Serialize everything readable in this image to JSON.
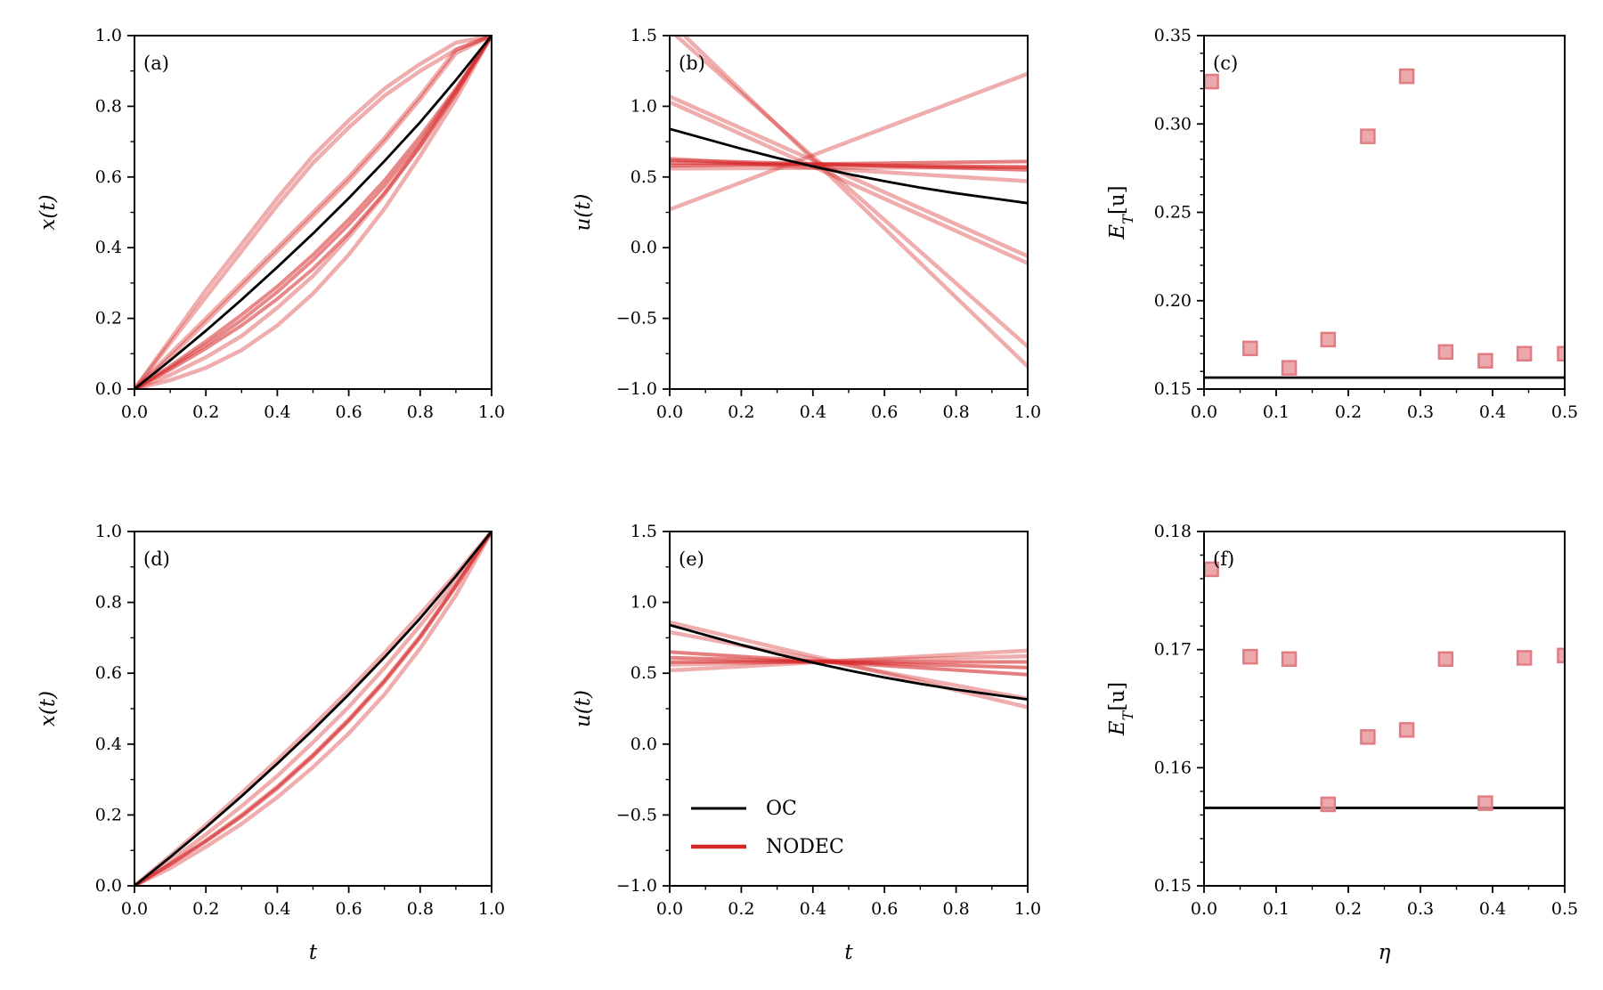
{
  "figure": {
    "colors": {
      "oc": "#000000",
      "nodec": "#d62728",
      "nodec_faint": "#e8868b",
      "marker_fill": "#e89aa0",
      "marker_edge": "#e37b82"
    },
    "legend": {
      "oc_label": "OC",
      "nodec_label": "NODEC",
      "panel": "e",
      "placement": "lower-left"
    }
  },
  "chart_data": [
    {
      "id": "a",
      "type": "line",
      "panel_label": "(a)",
      "xlabel": "",
      "ylabel": "x(t)",
      "xlim": [
        0,
        1
      ],
      "ylim": [
        0,
        1
      ],
      "xticks": [
        0,
        0.2,
        0.4,
        0.6,
        0.8,
        1.0
      ],
      "xtick_labels": [
        "0.0",
        "0.2",
        "0.4",
        "0.6",
        "0.8",
        "1.0"
      ],
      "yticks": [
        0,
        0.2,
        0.4,
        0.6,
        0.8,
        1.0
      ],
      "ytick_labels": [
        "0.0",
        "0.2",
        "0.4",
        "0.6",
        "0.8",
        "1.0"
      ],
      "x": [
        0,
        0.1,
        0.2,
        0.3,
        0.4,
        0.5,
        0.6,
        0.7,
        0.8,
        0.9,
        1.0
      ],
      "oc": [
        0,
        0.081,
        0.165,
        0.253,
        0.345,
        0.44,
        0.54,
        0.645,
        0.755,
        0.874,
        1.0
      ],
      "nodec_faint": [
        [
          0,
          0.14,
          0.28,
          0.41,
          0.54,
          0.66,
          0.76,
          0.85,
          0.92,
          0.98,
          1.0
        ],
        [
          0,
          0.13,
          0.26,
          0.39,
          0.52,
          0.64,
          0.74,
          0.83,
          0.9,
          0.96,
          1.0
        ],
        [
          0,
          0.1,
          0.2,
          0.3,
          0.4,
          0.5,
          0.6,
          0.71,
          0.83,
          0.96,
          1.0
        ],
        [
          0,
          0.09,
          0.19,
          0.29,
          0.39,
          0.49,
          0.59,
          0.7,
          0.82,
          0.95,
          1.0
        ],
        [
          0,
          0.025,
          0.06,
          0.11,
          0.18,
          0.27,
          0.38,
          0.51,
          0.66,
          0.82,
          1.0
        ],
        [
          0,
          0.04,
          0.09,
          0.15,
          0.23,
          0.32,
          0.43,
          0.55,
          0.69,
          0.84,
          1.0
        ]
      ],
      "nodec_strong": [
        [
          0,
          0.06,
          0.125,
          0.195,
          0.275,
          0.365,
          0.465,
          0.575,
          0.7,
          0.845,
          1.0
        ],
        [
          0,
          0.065,
          0.135,
          0.21,
          0.29,
          0.38,
          0.48,
          0.59,
          0.715,
          0.85,
          1.0
        ],
        [
          0,
          0.055,
          0.115,
          0.18,
          0.255,
          0.34,
          0.44,
          0.555,
          0.685,
          0.835,
          1.0
        ]
      ]
    },
    {
      "id": "b",
      "type": "line",
      "panel_label": "(b)",
      "xlabel": "",
      "ylabel": "u(t)",
      "xlim": [
        0,
        1
      ],
      "ylim": [
        -1,
        1.5
      ],
      "xticks": [
        0,
        0.2,
        0.4,
        0.6,
        0.8,
        1.0
      ],
      "xtick_labels": [
        "0.0",
        "0.2",
        "0.4",
        "0.6",
        "0.8",
        "1.0"
      ],
      "yticks": [
        -1,
        -0.5,
        0,
        0.5,
        1.0,
        1.5
      ],
      "ytick_labels": [
        "−1.0",
        "−0.5",
        "0.0",
        "0.5",
        "1.0",
        "1.5"
      ],
      "x": [
        0,
        0.1,
        0.2,
        0.3,
        0.4,
        0.5,
        0.6,
        0.7,
        0.8,
        0.9,
        1.0
      ],
      "oc": [
        0.84,
        0.77,
        0.7,
        0.635,
        0.575,
        0.52,
        0.47,
        0.425,
        0.385,
        0.35,
        0.315
      ],
      "nodec_faint_lines": [
        [
          0,
          1.07,
          1,
          -0.06
        ],
        [
          0,
          1.03,
          1,
          -0.11
        ],
        [
          0,
          1.54,
          1,
          -0.7
        ],
        [
          0,
          1.6,
          1,
          -0.84
        ],
        [
          0,
          0.27,
          1,
          1.23
        ],
        [
          0,
          0.56,
          1,
          0.57
        ],
        [
          0,
          0.63,
          1,
          0.47
        ]
      ],
      "nodec_strong_lines": [
        [
          0,
          0.6,
          1,
          0.57
        ],
        [
          0,
          0.58,
          1,
          0.61
        ],
        [
          0,
          0.62,
          1,
          0.55
        ]
      ]
    },
    {
      "id": "c",
      "type": "scatter",
      "panel_label": "(c)",
      "xlabel": "",
      "ylabel": "E_T[u]",
      "xlim": [
        0,
        0.5
      ],
      "ylim": [
        0.15,
        0.35
      ],
      "xticks": [
        0,
        0.1,
        0.2,
        0.3,
        0.4,
        0.5
      ],
      "xtick_labels": [
        "0.0",
        "0.1",
        "0.2",
        "0.3",
        "0.4",
        "0.5"
      ],
      "yticks": [
        0.15,
        0.2,
        0.25,
        0.3,
        0.35
      ],
      "ytick_labels": [
        "0.15",
        "0.20",
        "0.25",
        "0.30",
        "0.35"
      ],
      "eta": [
        0.01,
        0.064,
        0.118,
        0.172,
        0.227,
        0.281,
        0.335,
        0.39,
        0.444,
        0.5
      ],
      "energy": [
        0.324,
        0.173,
        0.162,
        0.178,
        0.293,
        0.327,
        0.171,
        0.166,
        0.17,
        0.17
      ],
      "oc_level": 0.1565
    },
    {
      "id": "d",
      "type": "line",
      "panel_label": "(d)",
      "xlabel": "t",
      "ylabel": "x(t)",
      "xlim": [
        0,
        1
      ],
      "ylim": [
        0,
        1
      ],
      "xticks": [
        0,
        0.2,
        0.4,
        0.6,
        0.8,
        1.0
      ],
      "xtick_labels": [
        "0.0",
        "0.2",
        "0.4",
        "0.6",
        "0.8",
        "1.0"
      ],
      "yticks": [
        0,
        0.2,
        0.4,
        0.6,
        0.8,
        1.0
      ],
      "ytick_labels": [
        "0.0",
        "0.2",
        "0.4",
        "0.6",
        "0.8",
        "1.0"
      ],
      "x": [
        0,
        0.1,
        0.2,
        0.3,
        0.4,
        0.5,
        0.6,
        0.7,
        0.8,
        0.9,
        1.0
      ],
      "oc": [
        0,
        0.081,
        0.165,
        0.253,
        0.345,
        0.44,
        0.54,
        0.645,
        0.755,
        0.874,
        1.0
      ],
      "nodec_faint": [
        [
          0,
          0.05,
          0.11,
          0.175,
          0.25,
          0.335,
          0.43,
          0.54,
          0.67,
          0.82,
          1.0
        ],
        [
          0,
          0.07,
          0.145,
          0.225,
          0.31,
          0.405,
          0.505,
          0.615,
          0.735,
          0.86,
          1.0
        ],
        [
          0,
          0.085,
          0.172,
          0.262,
          0.355,
          0.452,
          0.552,
          0.657,
          0.767,
          0.88,
          1.0
        ]
      ],
      "nodec_strong": [
        [
          0,
          0.06,
          0.125,
          0.195,
          0.275,
          0.365,
          0.465,
          0.575,
          0.7,
          0.845,
          1.0
        ],
        [
          0,
          0.062,
          0.128,
          0.2,
          0.28,
          0.37,
          0.47,
          0.58,
          0.705,
          0.848,
          1.0
        ]
      ]
    },
    {
      "id": "e",
      "type": "line",
      "panel_label": "(e)",
      "xlabel": "t",
      "ylabel": "u(t)",
      "xlim": [
        0,
        1
      ],
      "ylim": [
        -1,
        1.5
      ],
      "xticks": [
        0,
        0.2,
        0.4,
        0.6,
        0.8,
        1.0
      ],
      "xtick_labels": [
        "0.0",
        "0.2",
        "0.4",
        "0.6",
        "0.8",
        "1.0"
      ],
      "yticks": [
        -1,
        -0.5,
        0,
        0.5,
        1.0,
        1.5
      ],
      "ytick_labels": [
        "−1.0",
        "−0.5",
        "0.0",
        "0.5",
        "1.0",
        "1.5"
      ],
      "x": [
        0,
        0.1,
        0.2,
        0.3,
        0.4,
        0.5,
        0.6,
        0.7,
        0.8,
        0.9,
        1.0
      ],
      "oc": [
        0.84,
        0.77,
        0.7,
        0.635,
        0.575,
        0.52,
        0.47,
        0.425,
        0.385,
        0.35,
        0.315
      ],
      "nodec_faint_lines": [
        [
          0,
          0.86,
          1,
          0.26
        ],
        [
          0,
          0.52,
          1,
          0.66
        ],
        [
          0,
          0.79,
          1,
          0.32
        ],
        [
          0,
          0.56,
          1,
          0.62
        ]
      ],
      "nodec_strong_lines": [
        [
          0,
          0.58,
          1,
          0.58
        ],
        [
          0,
          0.65,
          1,
          0.49
        ],
        [
          0,
          0.61,
          1,
          0.54
        ]
      ]
    },
    {
      "id": "f",
      "type": "scatter",
      "panel_label": "(f)",
      "xlabel": "η",
      "ylabel": "E_T[u]",
      "xlim": [
        0,
        0.5
      ],
      "ylim": [
        0.15,
        0.18
      ],
      "xticks": [
        0,
        0.1,
        0.2,
        0.3,
        0.4,
        0.5
      ],
      "xtick_labels": [
        "0.0",
        "0.1",
        "0.2",
        "0.3",
        "0.4",
        "0.5"
      ],
      "yticks": [
        0.15,
        0.16,
        0.17,
        0.18
      ],
      "ytick_labels": [
        "0.15",
        "0.16",
        "0.17",
        "0.18"
      ],
      "eta": [
        0.01,
        0.064,
        0.118,
        0.172,
        0.227,
        0.281,
        0.335,
        0.39,
        0.444,
        0.5
      ],
      "energy": [
        0.1768,
        0.1694,
        0.1692,
        0.1569,
        0.1626,
        0.1632,
        0.1692,
        0.157,
        0.1693,
        0.1695
      ],
      "oc_level": 0.1566
    }
  ]
}
